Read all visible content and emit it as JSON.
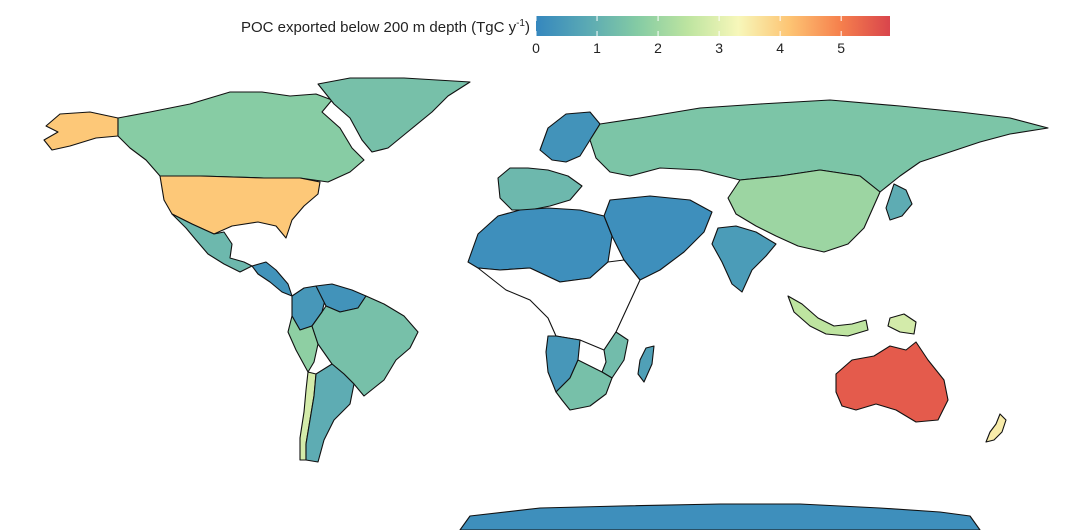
{
  "legend": {
    "title_main": "POC exported below 200 m depth (TgC y",
    "title_sup": "-1",
    "title_end": ")",
    "min": 0,
    "max": 5.8,
    "ticks": [
      "0",
      "1",
      "2",
      "3",
      "4",
      "5"
    ],
    "colormap": [
      "#3587be",
      "#5aa9b4",
      "#84cba4",
      "#bde4a0",
      "#f7f7ba",
      "#fdc574",
      "#f6814d",
      "#d9454c"
    ]
  },
  "colors": {
    "no_data": "#ffffff",
    "border": "#111111"
  },
  "regions": [
    {
      "name": "United States",
      "poc": 4.1
    },
    {
      "name": "Alaska",
      "poc": 4.1
    },
    {
      "name": "Canada",
      "poc": 1.7
    },
    {
      "name": "Greenland",
      "poc": 1.4
    },
    {
      "name": "Mexico",
      "poc": 1.2
    },
    {
      "name": "Central America",
      "poc": 0.3
    },
    {
      "name": "Colombia",
      "poc": 0.4
    },
    {
      "name": "Venezuela",
      "poc": 0.3
    },
    {
      "name": "Brazil",
      "poc": 1.4
    },
    {
      "name": "Peru",
      "poc": 1.8
    },
    {
      "name": "Chile",
      "poc": 2.8
    },
    {
      "name": "Argentina",
      "poc": 0.9
    },
    {
      "name": "Russia",
      "poc": 1.5
    },
    {
      "name": "China",
      "poc": 2.0
    },
    {
      "name": "India",
      "poc": 0.5
    },
    {
      "name": "Australia",
      "poc": 5.5
    },
    {
      "name": "New Zealand",
      "poc": 3.5
    },
    {
      "name": "Indonesia",
      "poc": 2.5
    },
    {
      "name": "Papua New Guinea",
      "poc": 2.8
    },
    {
      "name": "Japan",
      "poc": 0.9
    },
    {
      "name": "Scandinavia",
      "poc": 0.3
    },
    {
      "name": "Western Europe",
      "poc": 1.2
    },
    {
      "name": "North Africa",
      "poc": 0.2
    },
    {
      "name": "Middle East",
      "poc": 0.2
    },
    {
      "name": "Southern Africa",
      "poc": 1.4
    },
    {
      "name": "Namibia",
      "poc": 0.4
    },
    {
      "name": "Mozambique",
      "poc": 1.3
    },
    {
      "name": "Madagascar",
      "poc": 0.6
    },
    {
      "name": "Antarctica",
      "poc": 0.2
    }
  ]
}
